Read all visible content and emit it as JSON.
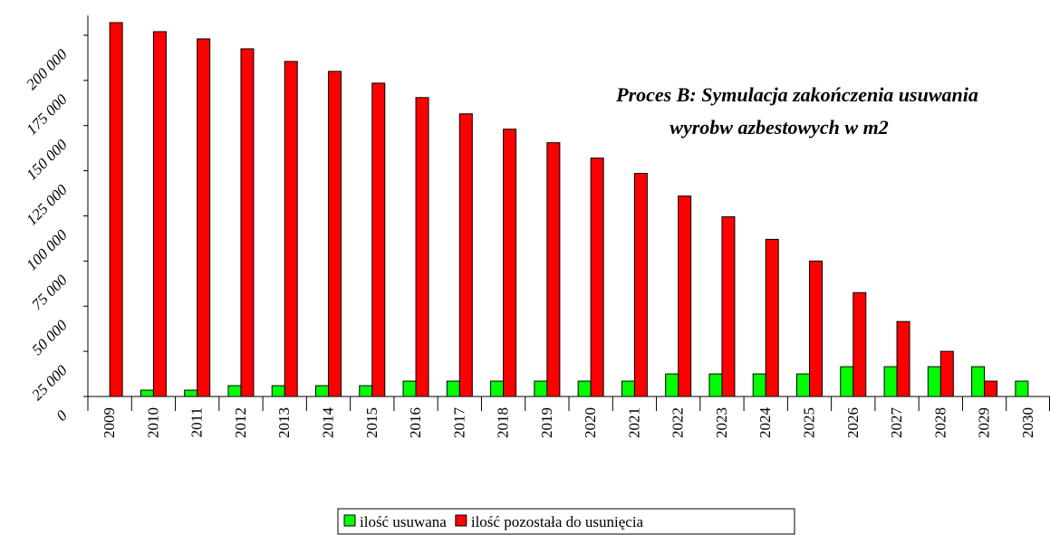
{
  "chart_data": {
    "type": "bar",
    "annotation": [
      "Proces B: Symulacja zakończenia usuwania",
      "wyrobw azbestowych w m2"
    ],
    "categories": [
      "2009",
      "2010",
      "2011",
      "2012",
      "2013",
      "2014",
      "2015",
      "2016",
      "2017",
      "2018",
      "2019",
      "2020",
      "2021",
      "2022",
      "2023",
      "2024",
      "2025",
      "2026",
      "2027",
      "2028",
      "2029",
      "2030"
    ],
    "series": [
      {
        "name": "ilość usuwana",
        "color": "#00ff00",
        "values": [
          0,
          3500,
          3500,
          6000,
          6000,
          6000,
          6000,
          8500,
          8500,
          8500,
          8500,
          8500,
          8500,
          12500,
          12500,
          12500,
          12500,
          16500,
          16500,
          16500,
          16500,
          8500
        ]
      },
      {
        "name": "ilość pozostała do usunięcia",
        "color": "#ff0000",
        "values": [
          207000,
          202000,
          198000,
          192500,
          185500,
          180000,
          173500,
          165500,
          156500,
          148000,
          140500,
          132000,
          123500,
          111000,
          99500,
          87000,
          75000,
          57500,
          41500,
          25000,
          8500,
          0
        ]
      }
    ],
    "ylim": [
      0,
      211000
    ],
    "yticks": [
      0,
      {
        "value": 25000,
        "label": "25 000"
      },
      {
        "value": 50000,
        "label": "50 000"
      },
      {
        "value": 75000,
        "label": "75 000"
      },
      {
        "value": 100000,
        "label": "100 000"
      },
      {
        "value": 125000,
        "label": "125 000"
      },
      {
        "value": 150000,
        "label": "150 000"
      },
      {
        "value": 175000,
        "label": "175 000"
      },
      {
        "value": 200000,
        "label": "200 000"
      }
    ]
  }
}
